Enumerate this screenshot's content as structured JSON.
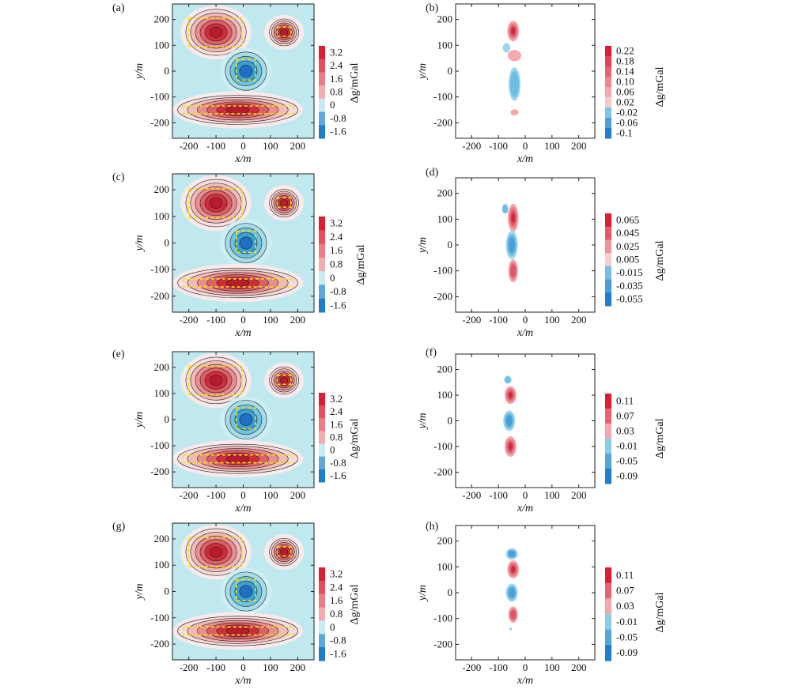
{
  "figure": {
    "colorbar_label": "Δg/mGal",
    "x_axis_label": "x/m",
    "y_axis_label": "y/m",
    "x_ticks": [
      -200,
      -100,
      0,
      100,
      200
    ],
    "y_ticks": [
      200,
      100,
      0,
      -100,
      -200
    ]
  },
  "chart_data": [
    {
      "panel": "(a)",
      "type": "heatmap",
      "xlim": [
        -260,
        260
      ],
      "ylim": [
        -260,
        260
      ],
      "colorbar_ticks": [
        "3.2",
        "2.4",
        "1.6",
        "0.8",
        "0",
        "-0.8",
        "-1.6"
      ],
      "anomalies": [
        {
          "shape": "ellipse",
          "cx": -100,
          "cy": 150,
          "rx": 75,
          "ry": 55,
          "amp": 3.4
        },
        {
          "shape": "ellipse",
          "cx": 150,
          "cy": 150,
          "rx": 18,
          "ry": 18,
          "amp": 2.6
        },
        {
          "shape": "ellipse",
          "cx": 10,
          "cy": 0,
          "rx": 40,
          "ry": 40,
          "amp": -1.7
        },
        {
          "shape": "ellipse",
          "cx": -20,
          "cy": -150,
          "rx": 185,
          "ry": 22,
          "amp": 2.8
        }
      ],
      "outlines": [
        [
          -200,
          95,
          -5,
          205
        ],
        [
          125,
          135,
          175,
          170
        ],
        [
          -25,
          -35,
          45,
          45
        ],
        [
          -220,
          -165,
          185,
          -135
        ]
      ]
    },
    {
      "panel": "(b)",
      "type": "heatmap",
      "xlim": [
        -260,
        260
      ],
      "ylim": [
        -260,
        260
      ],
      "colorbar_ticks": [
        "0.22",
        "0.18",
        "0.14",
        "0.10",
        "0.06",
        "0.02",
        "-0.02",
        "-0.06",
        "-0.1"
      ],
      "anomalies": [
        {
          "shape": "blob",
          "cx": -45,
          "cy": 155,
          "rx": 22,
          "ry": 40,
          "amp": 0.22
        },
        {
          "shape": "blob",
          "cx": -70,
          "cy": 90,
          "rx": 14,
          "ry": 18,
          "amp": -0.06
        },
        {
          "shape": "blob",
          "cx": -40,
          "cy": 60,
          "rx": 25,
          "ry": 22,
          "amp": 0.08
        },
        {
          "shape": "blob",
          "cx": -40,
          "cy": -50,
          "rx": 22,
          "ry": 65,
          "amp": -0.1
        },
        {
          "shape": "blob",
          "cx": -40,
          "cy": -160,
          "rx": 15,
          "ry": 12,
          "amp": 0.05
        }
      ]
    },
    {
      "panel": "(c)",
      "type": "heatmap",
      "xlim": [
        -260,
        260
      ],
      "ylim": [
        -260,
        260
      ],
      "colorbar_ticks": [
        "3.2",
        "2.4",
        "1.6",
        "0.8",
        "0",
        "-0.8",
        "-1.6"
      ],
      "anomalies": [
        {
          "shape": "ellipse",
          "cx": -100,
          "cy": 150,
          "rx": 75,
          "ry": 55,
          "amp": 3.4
        },
        {
          "shape": "ellipse",
          "cx": 150,
          "cy": 150,
          "rx": 18,
          "ry": 18,
          "amp": 2.6
        },
        {
          "shape": "ellipse",
          "cx": 10,
          "cy": 0,
          "rx": 40,
          "ry": 40,
          "amp": -1.7
        },
        {
          "shape": "ellipse",
          "cx": -20,
          "cy": -150,
          "rx": 185,
          "ry": 22,
          "amp": 2.8
        }
      ],
      "outlines": [
        [
          -200,
          95,
          -5,
          205
        ],
        [
          125,
          135,
          175,
          170
        ],
        [
          -25,
          -35,
          45,
          45
        ],
        [
          -220,
          -165,
          185,
          -135
        ]
      ]
    },
    {
      "panel": "(d)",
      "type": "heatmap",
      "xlim": [
        -260,
        260
      ],
      "ylim": [
        -260,
        260
      ],
      "colorbar_ticks": [
        "0.065",
        "0.045",
        "0.025",
        "0.005",
        "-0.015",
        "-0.035",
        "-0.055"
      ],
      "anomalies": [
        {
          "shape": "blob",
          "cx": -45,
          "cy": 105,
          "rx": 20,
          "ry": 55,
          "amp": 0.065
        },
        {
          "shape": "blob",
          "cx": -75,
          "cy": 140,
          "rx": 12,
          "ry": 20,
          "amp": -0.04
        },
        {
          "shape": "blob",
          "cx": -50,
          "cy": 0,
          "rx": 22,
          "ry": 55,
          "amp": -0.055
        },
        {
          "shape": "blob",
          "cx": -45,
          "cy": -100,
          "rx": 18,
          "ry": 45,
          "amp": 0.05
        }
      ]
    },
    {
      "panel": "(e)",
      "type": "heatmap",
      "xlim": [
        -260,
        260
      ],
      "ylim": [
        -260,
        260
      ],
      "colorbar_ticks": [
        "3.2",
        "2.4",
        "1.6",
        "0.8",
        "0",
        "-0.8",
        "-1.6"
      ],
      "anomalies": [
        {
          "shape": "ellipse",
          "cx": -100,
          "cy": 150,
          "rx": 75,
          "ry": 55,
          "amp": 3.4
        },
        {
          "shape": "ellipse",
          "cx": 150,
          "cy": 150,
          "rx": 18,
          "ry": 18,
          "amp": 2.6
        },
        {
          "shape": "ellipse",
          "cx": 10,
          "cy": 0,
          "rx": 40,
          "ry": 40,
          "amp": -1.7
        },
        {
          "shape": "ellipse",
          "cx": -20,
          "cy": -150,
          "rx": 185,
          "ry": 22,
          "amp": 2.8
        }
      ],
      "outlines": [
        [
          -200,
          95,
          -5,
          205
        ],
        [
          125,
          135,
          175,
          170
        ],
        [
          -25,
          -35,
          45,
          45
        ],
        [
          -220,
          -165,
          185,
          -135
        ]
      ]
    },
    {
      "panel": "(f)",
      "type": "heatmap",
      "xlim": [
        -260,
        260
      ],
      "ylim": [
        -260,
        260
      ],
      "colorbar_ticks": [
        "0.11",
        "0.07",
        "0.03",
        "-0.01",
        "-0.05",
        "-0.09"
      ],
      "anomalies": [
        {
          "shape": "blob",
          "cx": -65,
          "cy": 160,
          "rx": 14,
          "ry": 16,
          "amp": -0.05
        },
        {
          "shape": "blob",
          "cx": -55,
          "cy": 100,
          "rx": 22,
          "ry": 35,
          "amp": 0.11
        },
        {
          "shape": "blob",
          "cx": -60,
          "cy": 0,
          "rx": 22,
          "ry": 40,
          "amp": -0.09
        },
        {
          "shape": "blob",
          "cx": -55,
          "cy": -100,
          "rx": 22,
          "ry": 40,
          "amp": 0.1
        }
      ]
    },
    {
      "panel": "(g)",
      "type": "heatmap",
      "xlim": [
        -260,
        260
      ],
      "ylim": [
        -260,
        260
      ],
      "colorbar_ticks": [
        "3.2",
        "2.4",
        "1.6",
        "0.8",
        "0",
        "-0.8",
        "-1.6"
      ],
      "anomalies": [
        {
          "shape": "ellipse",
          "cx": -100,
          "cy": 150,
          "rx": 75,
          "ry": 55,
          "amp": 3.4
        },
        {
          "shape": "ellipse",
          "cx": 150,
          "cy": 150,
          "rx": 18,
          "ry": 18,
          "amp": 2.6
        },
        {
          "shape": "ellipse",
          "cx": 10,
          "cy": 0,
          "rx": 40,
          "ry": 40,
          "amp": -1.7
        },
        {
          "shape": "ellipse",
          "cx": -20,
          "cy": -150,
          "rx": 185,
          "ry": 22,
          "amp": 2.8
        }
      ],
      "outlines": [
        [
          -200,
          95,
          -5,
          205
        ],
        [
          125,
          135,
          175,
          170
        ],
        [
          -25,
          -35,
          45,
          45
        ],
        [
          -220,
          -165,
          185,
          -135
        ]
      ]
    },
    {
      "panel": "(h)",
      "type": "heatmap",
      "xlim": [
        -260,
        260
      ],
      "ylim": [
        -260,
        260
      ],
      "colorbar_ticks": [
        "0.11",
        "0.07",
        "0.03",
        "-0.01",
        "-0.05",
        "-0.09"
      ],
      "anomalies": [
        {
          "shape": "blob",
          "cx": -50,
          "cy": 150,
          "rx": 22,
          "ry": 22,
          "amp": -0.07
        },
        {
          "shape": "blob",
          "cx": -45,
          "cy": 90,
          "rx": 22,
          "ry": 35,
          "amp": 0.11
        },
        {
          "shape": "blob",
          "cx": -50,
          "cy": 0,
          "rx": 22,
          "ry": 35,
          "amp": -0.09
        },
        {
          "shape": "blob",
          "cx": -45,
          "cy": -85,
          "rx": 18,
          "ry": 32,
          "amp": 0.09
        },
        {
          "shape": "blob",
          "cx": -55,
          "cy": -140,
          "rx": 6,
          "ry": 5,
          "amp": -0.04
        }
      ]
    }
  ]
}
